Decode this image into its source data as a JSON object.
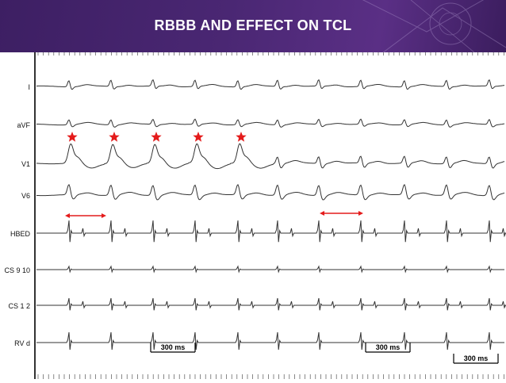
{
  "slide": {
    "title": "RBBB AND EFFECT ON TCL"
  },
  "leads": [
    {
      "label": "I"
    },
    {
      "label": "aVF"
    },
    {
      "label": "V1"
    },
    {
      "label": "V6"
    },
    {
      "label": "HBED"
    },
    {
      "label": "CS 9 10"
    },
    {
      "label": "CS 1 2"
    },
    {
      "label": "RV d"
    }
  ],
  "scale_bars": [
    {
      "label": "300 ms"
    },
    {
      "label": "300 ms"
    },
    {
      "label": "300 ms"
    }
  ],
  "colors": {
    "banner": "#4a2773",
    "trace": "#333333",
    "marker": "#e41b1b"
  },
  "icons": {
    "star": "red-star-icon",
    "arrow": "double-headed-arrow-icon"
  }
}
